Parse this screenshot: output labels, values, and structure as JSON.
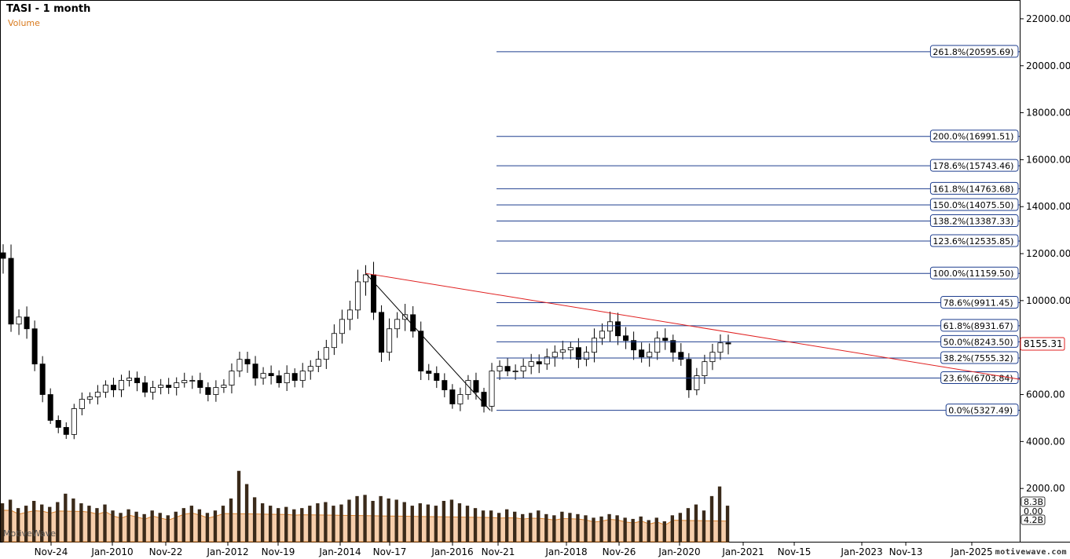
{
  "header": {
    "title": "TASI - 1 month",
    "volume_label": "Volume"
  },
  "watermark": "motivewave.com",
  "mw_logo_text": "MotiveWave",
  "colors": {
    "fib_line": "#1f3f8f",
    "trend_line": "#e02020",
    "fib_label_border": "#1f3f8f",
    "volume_fill": "#f6c9a3",
    "volume_stroke": "#d97a1e",
    "candle_up": "#ffffff",
    "candle_down": "#000000"
  },
  "chart_data": {
    "type": "candlestick",
    "title": "TASI - 1 month",
    "x_tick_labels": [
      "Nov-24",
      "Jan-2010",
      "Nov-22",
      "Jan-2012",
      "Nov-19",
      "Jan-2014",
      "Nov-17",
      "Jan-2016",
      "Nov-21",
      "Jan-2018",
      "Nov-26",
      "Jan-2020",
      "Jan-2021",
      "Nov-15",
      "Jan-2023",
      "Nov-13",
      "Jan-2025"
    ],
    "y_ticks": [
      "22000.00",
      "20000.00",
      "18000.00",
      "16000.00",
      "14000.00",
      "12000.00",
      "10000.00",
      "8000.00",
      "6000.00",
      "4000.00",
      "2000.00"
    ],
    "ylim": [
      0,
      22800
    ],
    "grid": false,
    "fibonacci_levels": [
      {
        "label": "261.8%(20595.69)",
        "value": 20595.69
      },
      {
        "label": "200.0%(16991.51)",
        "value": 16991.51
      },
      {
        "label": "178.6%(15743.46)",
        "value": 15743.46
      },
      {
        "label": "161.8%(14763.68)",
        "value": 14763.68
      },
      {
        "label": "150.0%(14075.50)",
        "value": 14075.5
      },
      {
        "label": "138.2%(13387.33)",
        "value": 13387.33
      },
      {
        "label": "123.6%(12535.85)",
        "value": 12535.85
      },
      {
        "label": "100.0%(11159.50)",
        "value": 11159.5
      },
      {
        "label": "78.6%(9911.45)",
        "value": 9911.45
      },
      {
        "label": "61.8%(8931.67)",
        "value": 8931.67
      },
      {
        "label": "50.0%(8243.50)",
        "value": 8243.5
      },
      {
        "label": "38.2%(7555.32)",
        "value": 7555.32
      },
      {
        "label": "23.6%(6703.84)",
        "value": 6703.84
      },
      {
        "label": "0.0%(5327.49)",
        "value": 5327.49
      }
    ],
    "price_path": [
      11800,
      9000,
      9300,
      8800,
      7300,
      6000,
      4900,
      4600,
      4300,
      5400,
      5800,
      5900,
      6100,
      6400,
      6200,
      6600,
      6700,
      6500,
      6100,
      6300,
      6400,
      6300,
      6500,
      6600,
      6600,
      6300,
      6000,
      6300,
      6400,
      7000,
      7500,
      7300,
      6700,
      6900,
      6800,
      6500,
      6900,
      6600,
      7000,
      7200,
      7500,
      8000,
      8600,
      9200,
      9600,
      10800,
      11100,
      9500,
      7800,
      8800,
      9200,
      9400,
      8700,
      7000,
      6900,
      6600,
      6200,
      5600,
      6000,
      6600,
      6100,
      5500,
      7000,
      7200,
      7000,
      7000,
      7200,
      7400,
      7300,
      7600,
      7800,
      7900,
      8000,
      7500,
      7800,
      8400,
      8700,
      9100,
      8500,
      8300,
      7900,
      7600,
      7800,
      8400,
      8300,
      7800,
      7500,
      6200,
      6800,
      7400,
      7800,
      8200,
      8155
    ],
    "last_price_label": "8155.31",
    "trend_line_label": "",
    "volume": {
      "label": "Volume",
      "axis_labels": [
        "8.3B",
        "0.00",
        "4.2B"
      ],
      "bars": [
        3.2,
        3.5,
        2.8,
        3.0,
        3.4,
        3.1,
        2.9,
        3.3,
        4.0,
        3.6,
        3.2,
        3.0,
        2.8,
        3.1,
        2.6,
        2.4,
        2.7,
        2.5,
        2.3,
        2.6,
        2.4,
        2.2,
        2.5,
        2.8,
        3.0,
        2.7,
        2.4,
        2.6,
        3.0,
        3.6,
        5.9,
        4.8,
        3.7,
        3.2,
        3.0,
        2.8,
        2.9,
        2.7,
        2.8,
        3.0,
        3.2,
        3.3,
        3.0,
        3.1,
        3.5,
        3.8,
        3.9,
        3.4,
        3.8,
        3.6,
        3.5,
        3.3,
        3.0,
        3.2,
        3.1,
        3.0,
        3.4,
        3.5,
        3.2,
        3.0,
        2.8,
        2.6,
        2.6,
        2.4,
        2.7,
        2.5,
        2.3,
        2.4,
        2.6,
        2.3,
        2.2,
        2.5,
        2.4,
        2.3,
        2.2,
        2.0,
        2.1,
        2.3,
        2.2,
        2.0,
        1.9,
        2.1,
        1.8,
        2.0,
        1.7,
        2.2,
        2.4,
        2.8,
        3.1,
        2.6,
        3.8,
        4.6,
        3.0
      ]
    }
  }
}
